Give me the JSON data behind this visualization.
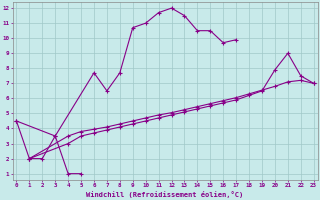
{
  "xlabel": "Windchill (Refroidissement éolien,°C)",
  "background_color": "#c8eaea",
  "grid_color": "#a0c8c8",
  "line_color": "#880088",
  "xticks": [
    0,
    1,
    2,
    3,
    4,
    5,
    6,
    7,
    8,
    9,
    10,
    11,
    12,
    13,
    14,
    15,
    16,
    17,
    18,
    19,
    20,
    21,
    22,
    23
  ],
  "yticks": [
    1,
    2,
    3,
    4,
    5,
    6,
    7,
    8,
    9,
    10,
    11,
    12
  ],
  "line1_x": [
    0,
    1,
    2,
    3,
    4,
    5
  ],
  "line1_y": [
    4.5,
    2.0,
    2.0,
    3.5,
    1.0,
    1.0
  ],
  "line2_x": [
    0,
    3,
    6,
    7,
    8,
    9,
    10,
    11,
    12,
    13,
    14,
    15,
    16,
    17
  ],
  "line2_y": [
    4.5,
    3.5,
    7.7,
    6.5,
    7.7,
    10.7,
    11.0,
    11.7,
    12.0,
    11.5,
    10.5,
    10.5,
    9.7,
    9.9
  ],
  "line3_x": [
    1,
    4,
    5,
    6,
    7,
    8,
    9,
    10,
    11,
    12,
    13,
    14,
    15,
    16,
    17,
    18,
    19,
    20,
    21,
    22,
    23
  ],
  "line3_y": [
    2.0,
    3.5,
    3.8,
    3.95,
    4.1,
    4.3,
    4.5,
    4.7,
    4.9,
    5.05,
    5.25,
    5.45,
    5.65,
    5.85,
    6.05,
    6.3,
    6.55,
    6.8,
    7.1,
    7.2,
    7.0
  ],
  "line4_x": [
    1,
    4,
    5,
    6,
    7,
    8,
    9,
    10,
    11,
    12,
    13,
    14,
    15,
    16,
    17,
    18,
    19,
    20,
    21,
    22,
    23
  ],
  "line4_y": [
    2.0,
    3.0,
    3.5,
    3.7,
    3.9,
    4.1,
    4.3,
    4.5,
    4.7,
    4.9,
    5.1,
    5.3,
    5.5,
    5.7,
    5.9,
    6.2,
    6.5,
    7.9,
    9.0,
    7.5,
    7.0
  ],
  "marker": "+"
}
